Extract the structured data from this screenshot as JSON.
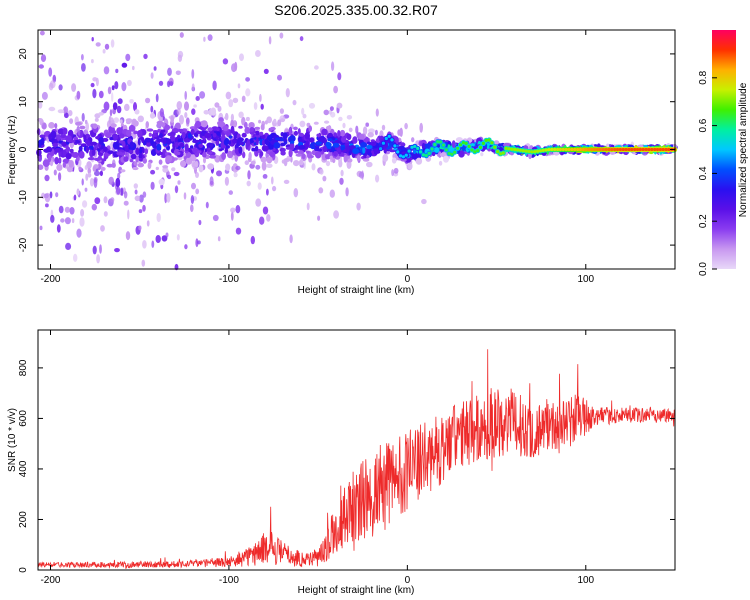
{
  "title": "S206.2025.335.00.32.R07",
  "colors": {
    "snr_line": "#ee2a2a",
    "colormap": [
      "#e8d8f8",
      "#c898f0",
      "#8a3cf0",
      "#5a10e8",
      "#2a10f0",
      "#0050ff",
      "#00c8ff",
      "#00f0a0",
      "#40f000",
      "#c8f000",
      "#ffb000",
      "#ff3000",
      "#ff0060"
    ]
  },
  "chart_data": [
    {
      "name": "spectrogram",
      "type": "heatmap",
      "xlabel": "Height of straight line (km)",
      "ylabel": "Frequency (Hz)",
      "xlim": [
        -207,
        150
      ],
      "ylim": [
        -25,
        25
      ],
      "xticks": [
        -200,
        -100,
        0,
        100
      ],
      "xtick_labels": [
        "-200",
        "-100",
        "0",
        "100"
      ],
      "yticks": [
        -20,
        -10,
        0,
        10,
        20
      ],
      "ytick_labels": [
        "-20",
        "-10",
        "0",
        "10",
        "20"
      ],
      "ridge": [
        {
          "x": -200,
          "f": 1.0,
          "amp": 0.35,
          "spread": 3.0
        },
        {
          "x": -160,
          "f": 0.5,
          "amp": 0.35,
          "spread": 3.0
        },
        {
          "x": -120,
          "f": 2.0,
          "amp": 0.38,
          "spread": 2.6
        },
        {
          "x": -80,
          "f": 1.5,
          "amp": 0.38,
          "spread": 2.3
        },
        {
          "x": -50,
          "f": 1.5,
          "amp": 0.42,
          "spread": 2.0
        },
        {
          "x": -30,
          "f": 0.5,
          "amp": 0.45,
          "spread": 1.7
        },
        {
          "x": -20,
          "f": 0.0,
          "amp": 0.45,
          "spread": 1.5
        },
        {
          "x": -10,
          "f": 1.5,
          "amp": 0.5,
          "spread": 1.3
        },
        {
          "x": 0,
          "f": -1.0,
          "amp": 0.5,
          "spread": 1.0
        },
        {
          "x": 10,
          "f": 0.0,
          "amp": 0.6,
          "spread": 0.9
        },
        {
          "x": 20,
          "f": 0.5,
          "amp": 0.62,
          "spread": 0.8
        },
        {
          "x": 30,
          "f": 0.0,
          "amp": 0.65,
          "spread": 0.7
        },
        {
          "x": 40,
          "f": 1.0,
          "amp": 0.65,
          "spread": 0.6
        },
        {
          "x": 50,
          "f": 0.5,
          "amp": 0.7,
          "spread": 0.5
        },
        {
          "x": 60,
          "f": 0.0,
          "amp": 0.72,
          "spread": 0.4
        },
        {
          "x": 70,
          "f": -0.5,
          "amp": 0.72,
          "spread": 0.4
        },
        {
          "x": 80,
          "f": 0.0,
          "amp": 0.75,
          "spread": 0.3
        },
        {
          "x": 100,
          "f": 0.0,
          "amp": 0.85,
          "spread": 0.3
        },
        {
          "x": 120,
          "f": 0.0,
          "amp": 0.9,
          "spread": 0.3
        },
        {
          "x": 150,
          "f": 0.0,
          "amp": 0.9,
          "spread": 0.3
        }
      ],
      "colorbar": {
        "label": "Normalized spectral amplitude",
        "range": [
          0,
          1
        ],
        "ticks": [
          0.0,
          0.2,
          0.4,
          0.6,
          0.8
        ],
        "tick_labels": [
          "0.0",
          "0.2",
          "0.4",
          "0.6",
          "0.8"
        ]
      }
    },
    {
      "name": "snr",
      "type": "line",
      "xlabel": "Height of straight line (km)",
      "ylabel": "SNR (10 * v/v)",
      "xlim": [
        -207,
        150
      ],
      "ylim": [
        0,
        950
      ],
      "xticks": [
        -200,
        -100,
        0,
        100
      ],
      "xtick_labels": [
        "-200",
        "-100",
        "0",
        "100"
      ],
      "yticks": [
        0,
        200,
        400,
        600,
        800
      ],
      "ytick_labels": [
        "0",
        "200",
        "400",
        "600",
        "800"
      ],
      "series": [
        {
          "name": "SNR",
          "envelope": [
            {
              "x": -207,
              "base": 20,
              "noise": 10
            },
            {
              "x": -150,
              "base": 20,
              "noise": 12
            },
            {
              "x": -110,
              "base": 25,
              "noise": 15
            },
            {
              "x": -95,
              "base": 35,
              "noise": 25
            },
            {
              "x": -85,
              "base": 60,
              "noise": 50
            },
            {
              "x": -78,
              "base": 90,
              "noise": 70
            },
            {
              "x": -70,
              "base": 60,
              "noise": 50
            },
            {
              "x": -60,
              "base": 40,
              "noise": 30
            },
            {
              "x": -50,
              "base": 45,
              "noise": 35
            },
            {
              "x": -45,
              "base": 90,
              "noise": 60
            },
            {
              "x": -40,
              "base": 150,
              "noise": 90
            },
            {
              "x": -35,
              "base": 200,
              "noise": 120
            },
            {
              "x": -30,
              "base": 240,
              "noise": 150
            },
            {
              "x": -25,
              "base": 250,
              "noise": 170
            },
            {
              "x": -15,
              "base": 300,
              "noise": 180
            },
            {
              "x": -5,
              "base": 360,
              "noise": 170
            },
            {
              "x": 0,
              "base": 380,
              "noise": 160
            },
            {
              "x": 10,
              "base": 420,
              "noise": 150
            },
            {
              "x": 20,
              "base": 470,
              "noise": 140
            },
            {
              "x": 30,
              "base": 520,
              "noise": 140
            },
            {
              "x": 40,
              "base": 540,
              "noise": 140
            },
            {
              "x": 50,
              "base": 580,
              "noise": 150
            },
            {
              "x": 60,
              "base": 570,
              "noise": 130
            },
            {
              "x": 70,
              "base": 540,
              "noise": 110
            },
            {
              "x": 80,
              "base": 560,
              "noise": 100
            },
            {
              "x": 90,
              "base": 570,
              "noise": 100
            },
            {
              "x": 95,
              "base": 590,
              "noise": 110
            },
            {
              "x": 105,
              "base": 605,
              "noise": 35
            },
            {
              "x": 130,
              "base": 610,
              "noise": 30
            },
            {
              "x": 150,
              "base": 610,
              "noise": 30
            }
          ]
        }
      ]
    }
  ]
}
